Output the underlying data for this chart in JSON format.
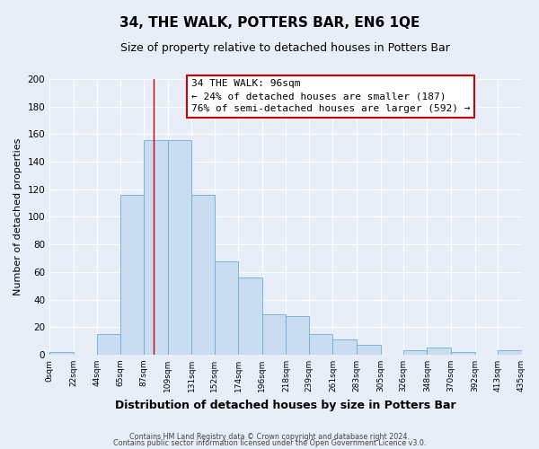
{
  "title": "34, THE WALK, POTTERS BAR, EN6 1QE",
  "subtitle": "Size of property relative to detached houses in Potters Bar",
  "xlabel": "Distribution of detached houses by size in Potters Bar",
  "ylabel": "Number of detached properties",
  "bar_values": [
    2,
    0,
    15,
    116,
    156,
    156,
    116,
    68,
    56,
    29,
    28,
    15,
    11,
    7,
    0,
    3,
    5,
    2,
    0,
    3
  ],
  "bin_edges": [
    0,
    22,
    44,
    65,
    87,
    109,
    131,
    152,
    174,
    196,
    218,
    239,
    261,
    283,
    305,
    326,
    348,
    370,
    392,
    413,
    435
  ],
  "tick_labels": [
    "0sqm",
    "22sqm",
    "44sqm",
    "65sqm",
    "87sqm",
    "109sqm",
    "131sqm",
    "152sqm",
    "174sqm",
    "196sqm",
    "218sqm",
    "239sqm",
    "261sqm",
    "283sqm",
    "305sqm",
    "326sqm",
    "348sqm",
    "370sqm",
    "392sqm",
    "413sqm",
    "435sqm"
  ],
  "bar_color": "#c9dcf0",
  "bar_edge_color": "#6aaed6",
  "ylim": [
    0,
    200
  ],
  "yticks": [
    0,
    20,
    40,
    60,
    80,
    100,
    120,
    140,
    160,
    180,
    200
  ],
  "vline_x": 96,
  "vline_color": "#cc0000",
  "annotation_title": "34 THE WALK: 96sqm",
  "annotation_line1": "← 24% of detached houses are smaller (187)",
  "annotation_line2": "76% of semi-detached houses are larger (592) →",
  "annotation_box_facecolor": "#ffffff",
  "annotation_box_edgecolor": "#cc0000",
  "footer1": "Contains HM Land Registry data © Crown copyright and database right 2024.",
  "footer2": "Contains public sector information licensed under the Open Government Licence v3.0.",
  "bg_color": "#e8eef8",
  "grid_color": "#ffffff",
  "title_fontsize": 11,
  "subtitle_fontsize": 9
}
